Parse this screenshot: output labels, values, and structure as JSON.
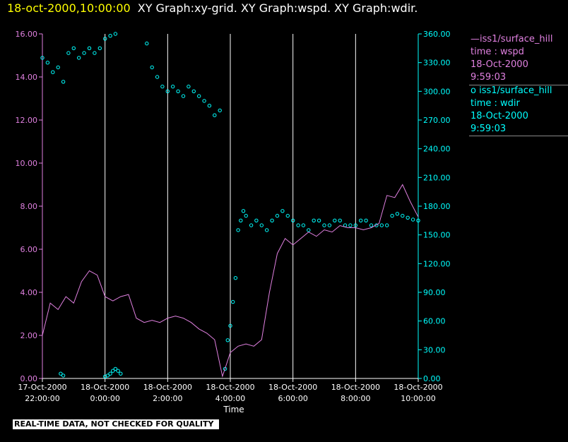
{
  "header": {
    "timestamp": "18-oct-2000,10:00:00",
    "graphs": "XY Graph:xy-grid.  XY Graph:wspd.  XY Graph:wdir."
  },
  "legend": {
    "wspd": {
      "line1": "iss1/surface_hill",
      "line2": "time : wspd",
      "line3": "18-Oct-2000",
      "line4": "9:59:03"
    },
    "wdir": {
      "line1": "iss1/surface_hill",
      "line2": "time : wdir",
      "line3": "18-Oct-2000",
      "line4": "9:59:03"
    }
  },
  "footer_note": "REAL-TIME DATA, NOT CHECKED FOR QUALITY",
  "colors": {
    "wspd": "#e080e0",
    "wdir": "#00ffff",
    "grid": "#ffffff",
    "title_time": "#ffff00"
  },
  "chart_data": {
    "type": "line+scatter",
    "xlabel": "Time",
    "x_range": [
      "17-Oct-2000 22:00:00",
      "18-Oct-2000 10:00:00"
    ],
    "x_ticks": [
      {
        "date": "17-Oct-2000",
        "time": "22:00:00"
      },
      {
        "date": "18-Oct-2000",
        "time": "0:00:00"
      },
      {
        "date": "18-Oct-2000",
        "time": "2:00:00"
      },
      {
        "date": "18-Oct-2000",
        "time": "4:00:00"
      },
      {
        "date": "18-Oct-2000",
        "time": "6:00:00"
      },
      {
        "date": "18-Oct-2000",
        "time": "8:00:00"
      },
      {
        "date": "18-Oct-2000",
        "time": "10:00:00"
      }
    ],
    "y_left": {
      "range": [
        0,
        16
      ],
      "ticks": [
        "0.00",
        "2.00",
        "4.00",
        "6.00",
        "8.00",
        "10.00",
        "12.00",
        "14.00",
        "16.00"
      ]
    },
    "y_right": {
      "range": [
        0,
        360
      ],
      "ticks": [
        "0.00",
        "30.00",
        "60.00",
        "90.00",
        "120.00",
        "150.00",
        "180.00",
        "210.00",
        "240.00",
        "270.00",
        "300.00",
        "330.00",
        "360.00"
      ]
    },
    "grid": "vertical",
    "legend_position": "right",
    "series": [
      {
        "name": "iss1/surface_hill time : wspd",
        "kind": "line",
        "axis": "left",
        "x": [
          "22:00",
          "22:15",
          "22:30",
          "22:45",
          "23:00",
          "23:15",
          "23:30",
          "23:45",
          "0:00",
          "0:15",
          "0:30",
          "0:45",
          "1:00",
          "1:15",
          "1:30",
          "1:45",
          "2:00",
          "2:15",
          "2:30",
          "2:45",
          "3:00",
          "3:15",
          "3:30",
          "3:45",
          "4:00",
          "4:15",
          "4:30",
          "4:45",
          "5:00",
          "5:15",
          "5:30",
          "5:45",
          "6:00",
          "6:15",
          "6:30",
          "6:45",
          "7:00",
          "7:15",
          "7:30",
          "7:45",
          "8:00",
          "8:15",
          "8:30",
          "8:45",
          "9:00",
          "9:15",
          "9:30",
          "9:45",
          "10:00"
        ],
        "y": [
          2.0,
          3.5,
          3.2,
          3.8,
          3.5,
          4.5,
          5.0,
          4.8,
          3.8,
          3.6,
          3.8,
          3.9,
          2.8,
          2.6,
          2.7,
          2.6,
          2.8,
          2.9,
          2.8,
          2.6,
          2.3,
          2.1,
          1.8,
          0.1,
          1.2,
          1.5,
          1.6,
          1.5,
          1.8,
          4.0,
          5.8,
          6.5,
          6.2,
          6.5,
          6.8,
          6.6,
          6.9,
          6.8,
          7.1,
          7.0,
          7.0,
          6.9,
          7.0,
          7.2,
          8.5,
          8.4,
          9.0,
          8.2,
          7.5
        ]
      },
      {
        "name": "iss1/surface_hill time : wdir",
        "kind": "scatter",
        "axis": "right",
        "x": [
          "22:00",
          "22:10",
          "22:20",
          "22:30",
          "22:40",
          "22:50",
          "23:00",
          "23:10",
          "23:20",
          "23:30",
          "23:40",
          "23:50",
          "0:00",
          "0:10",
          "0:20",
          "1:20",
          "1:30",
          "1:40",
          "1:50",
          "2:00",
          "2:10",
          "2:20",
          "2:30",
          "2:40",
          "2:50",
          "3:00",
          "3:10",
          "3:20",
          "3:30",
          "3:40",
          "3:50",
          "3:55",
          "4:00",
          "4:05",
          "4:10",
          "4:15",
          "4:20",
          "4:25",
          "4:30",
          "4:40",
          "4:50",
          "5:00",
          "5:10",
          "5:20",
          "5:30",
          "5:40",
          "5:50",
          "6:00",
          "6:10",
          "6:20",
          "6:30",
          "6:40",
          "6:50",
          "7:00",
          "7:10",
          "7:20",
          "7:30",
          "7:40",
          "7:50",
          "8:00",
          "8:10",
          "8:20",
          "8:30",
          "8:40",
          "8:50",
          "9:00",
          "9:10",
          "9:20",
          "9:30",
          "9:40",
          "9:50",
          "10:00",
          "22:35",
          "22:40",
          "0:00",
          "0:05",
          "0:10",
          "0:15",
          "0:20",
          "0:25",
          "0:30"
        ],
        "y": [
          335,
          330,
          320,
          325,
          310,
          340,
          345,
          335,
          340,
          345,
          340,
          345,
          355,
          358,
          360,
          350,
          325,
          315,
          305,
          300,
          305,
          300,
          295,
          305,
          300,
          295,
          290,
          285,
          275,
          280,
          10,
          40,
          55,
          80,
          105,
          155,
          165,
          175,
          170,
          160,
          165,
          160,
          155,
          165,
          170,
          175,
          170,
          165,
          160,
          160,
          155,
          165,
          165,
          160,
          160,
          165,
          165,
          160,
          160,
          160,
          165,
          165,
          160,
          160,
          160,
          160,
          170,
          172,
          170,
          168,
          166,
          165,
          5,
          3,
          2,
          3,
          5,
          8,
          10,
          8,
          5
        ]
      }
    ]
  }
}
